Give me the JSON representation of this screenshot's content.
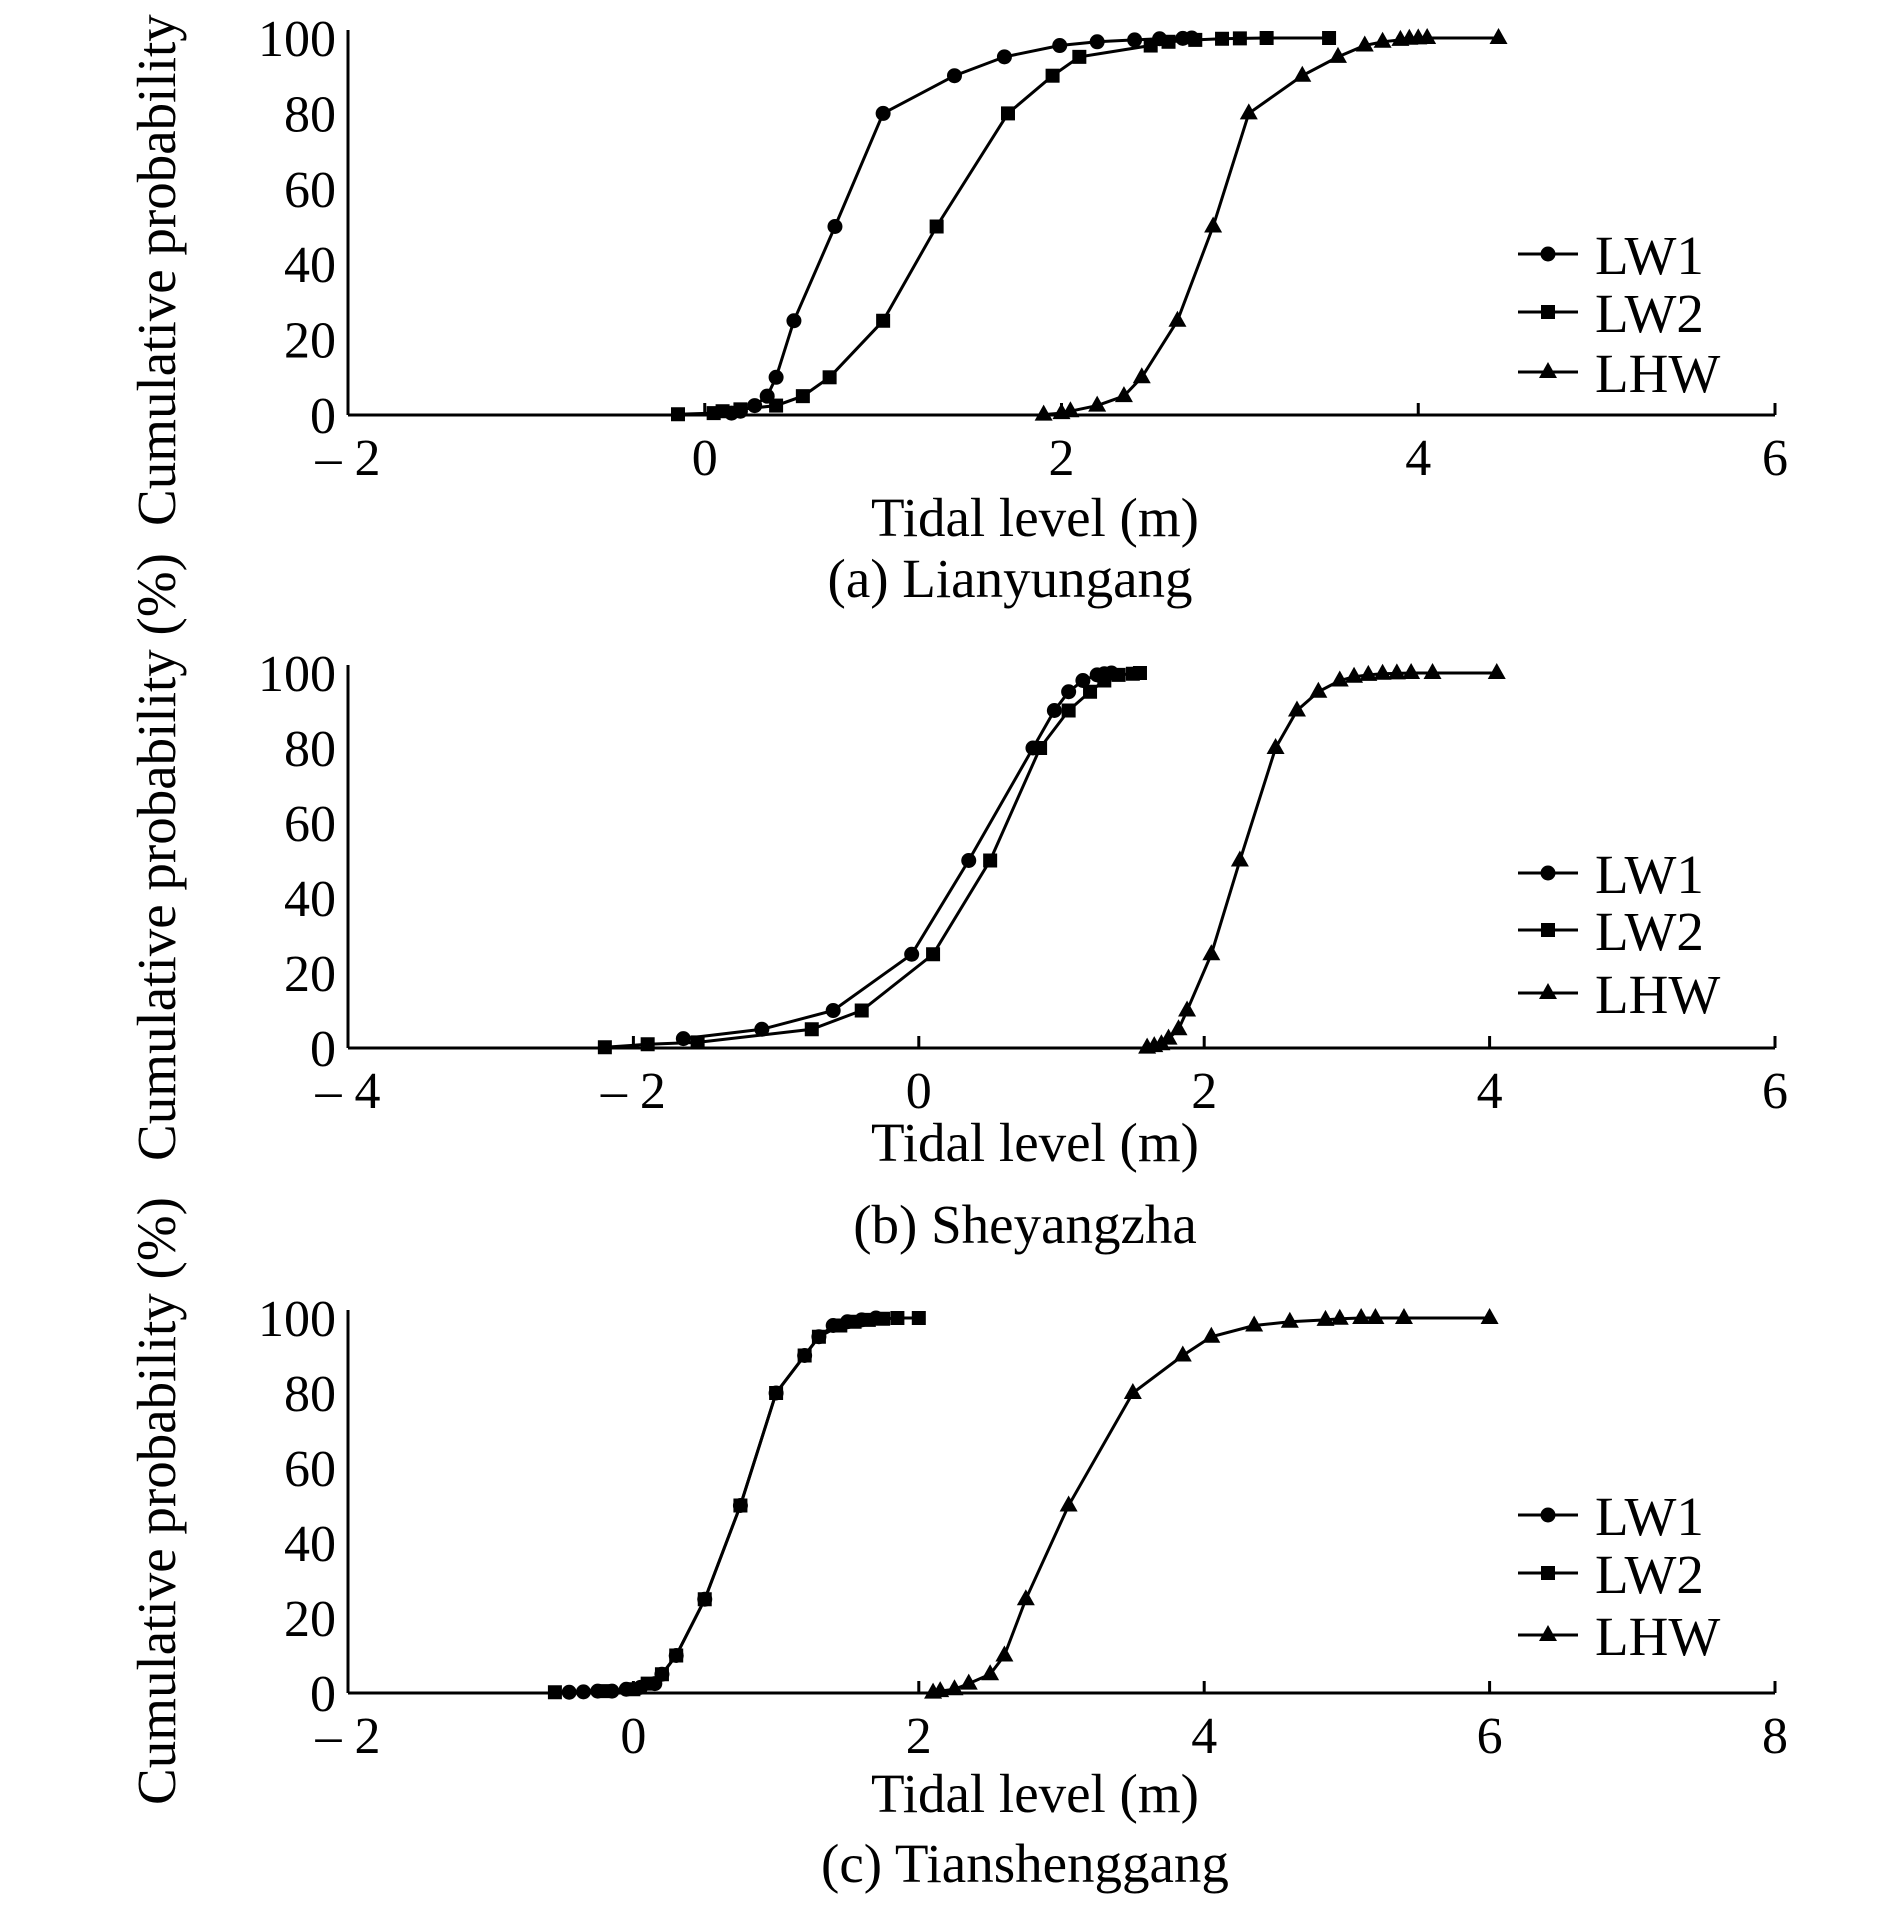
{
  "chart_data": [
    {
      "type": "line",
      "caption": "(a) Lianyungang",
      "xlabel": "Tidal level (m)",
      "ylabel": "Cumulative probability (%)",
      "xlim": [
        -2,
        6
      ],
      "ylim": [
        0,
        100
      ],
      "xticks": [
        -2,
        0,
        2,
        4,
        6
      ],
      "xtick_labels": [
        "– 2",
        "0",
        "2",
        "4",
        "6"
      ],
      "yticks": [
        0,
        20,
        40,
        60,
        80,
        100
      ],
      "ytick_labels": [
        "0",
        "20",
        "40",
        "60",
        "80",
        "100"
      ],
      "grid": false,
      "legend_position": "right",
      "series": [
        {
          "name": "LW1",
          "marker": "circle",
          "x": [
            0.15,
            0.2,
            0.28,
            0.35,
            0.4,
            0.5,
            0.73,
            1.0,
            1.4,
            1.68,
            1.99,
            2.2,
            2.41,
            2.55,
            2.68,
            2.73
          ],
          "y": [
            0.5,
            1,
            2.5,
            5,
            10,
            25,
            50,
            80,
            90,
            95,
            98,
            99,
            99.5,
            99.8,
            99.9,
            100
          ]
        },
        {
          "name": "LW2",
          "marker": "square",
          "x": [
            -0.15,
            0.05,
            0.1,
            0.2,
            0.4,
            0.55,
            0.7,
            1.0,
            1.3,
            1.7,
            1.95,
            2.1,
            2.5,
            2.6,
            2.75,
            2.9,
            3.0,
            3.15,
            3.5
          ],
          "y": [
            0.2,
            0.5,
            1,
            1.5,
            2.5,
            5,
            10,
            25,
            50,
            80,
            90,
            95,
            98,
            99,
            99.5,
            99.8,
            99.9,
            100,
            100
          ]
        },
        {
          "name": "LHW",
          "marker": "triangle",
          "x": [
            1.9,
            2.0,
            2.05,
            2.2,
            2.35,
            2.45,
            2.65,
            2.85,
            3.05,
            3.35,
            3.55,
            3.7,
            3.8,
            3.9,
            3.95,
            4.0,
            4.05,
            4.45
          ],
          "y": [
            0.1,
            0.5,
            1,
            2.5,
            5,
            10,
            25,
            50,
            80,
            90,
            95,
            98,
            99,
            99.5,
            99.8,
            99.9,
            100,
            100
          ]
        }
      ]
    },
    {
      "type": "line",
      "caption": "(b) Sheyangzha",
      "xlabel": "Tidal level (m)",
      "ylabel": "Cumulative probability (%)",
      "xlim": [
        -4,
        6
      ],
      "ylim": [
        0,
        100
      ],
      "xticks": [
        -4,
        -2,
        0,
        2,
        4,
        6
      ],
      "xtick_labels": [
        "– 4",
        "– 2",
        "0",
        "2",
        "4",
        "6"
      ],
      "yticks": [
        0,
        20,
        40,
        60,
        80,
        100
      ],
      "ytick_labels": [
        "0",
        "20",
        "40",
        "60",
        "80",
        "100"
      ],
      "grid": false,
      "legend_position": "right",
      "series": [
        {
          "name": "LW1",
          "marker": "circle",
          "x": [
            -1.65,
            -1.1,
            -0.6,
            -0.05,
            0.35,
            0.8,
            0.95,
            1.05,
            1.15,
            1.25,
            1.3,
            1.35
          ],
          "y": [
            2.5,
            5,
            10,
            25,
            50,
            80,
            90,
            95,
            98,
            99.5,
            99.8,
            100
          ]
        },
        {
          "name": "LW2",
          "marker": "square",
          "x": [
            -2.2,
            -1.9,
            -1.55,
            -0.75,
            -0.4,
            0.1,
            0.5,
            0.85,
            1.05,
            1.2,
            1.3,
            1.4,
            1.5,
            1.55
          ],
          "y": [
            0.2,
            1,
            1.5,
            5,
            10,
            25,
            50,
            80,
            90,
            95,
            98,
            99.5,
            99.8,
            100
          ]
        },
        {
          "name": "LHW",
          "marker": "triangle",
          "x": [
            1.6,
            1.65,
            1.7,
            1.75,
            1.82,
            1.88,
            2.05,
            2.25,
            2.5,
            2.65,
            2.8,
            2.95,
            3.05,
            3.15,
            3.25,
            3.35,
            3.45,
            3.6,
            4.05
          ],
          "y": [
            0.1,
            0.5,
            1,
            2.5,
            5,
            10,
            25,
            50,
            80,
            90,
            95,
            98,
            99,
            99.5,
            99.8,
            99.9,
            100,
            100,
            100
          ]
        }
      ]
    },
    {
      "type": "line",
      "caption": "(c) Tianshenggang",
      "xlabel": "Tidal level (m)",
      "ylabel": "Cumulative probability (%)",
      "xlim": [
        -2,
        8
      ],
      "ylim": [
        0,
        100
      ],
      "xticks": [
        -2,
        0,
        2,
        4,
        6,
        8
      ],
      "xtick_labels": [
        "– 2",
        "0",
        "2",
        "4",
        "6",
        "8"
      ],
      "yticks": [
        0,
        20,
        40,
        60,
        80,
        100
      ],
      "ytick_labels": [
        "0",
        "20",
        "40",
        "60",
        "80",
        "100"
      ],
      "grid": false,
      "legend_position": "right",
      "series": [
        {
          "name": "LW1",
          "marker": "circle",
          "x": [
            -0.45,
            -0.35,
            -0.25,
            -0.15,
            -0.05,
            0.05,
            0.15,
            0.2,
            0.3,
            0.5,
            0.75,
            1.0,
            1.2,
            1.3,
            1.4,
            1.5,
            1.6,
            1.7
          ],
          "y": [
            0.2,
            0.3,
            0.5,
            0.5,
            1,
            1.5,
            2.5,
            5,
            10,
            25,
            50,
            80,
            90,
            95,
            98,
            99,
            99.5,
            100
          ]
        },
        {
          "name": "LW2",
          "marker": "square",
          "x": [
            -0.55,
            -0.2,
            0.0,
            0.1,
            0.2,
            0.3,
            0.5,
            0.75,
            1.0,
            1.2,
            1.3,
            1.45,
            1.55,
            1.65,
            1.75,
            1.85,
            2.0
          ],
          "y": [
            0.2,
            0.5,
            1,
            2.5,
            5,
            10,
            25,
            50,
            80,
            90,
            95,
            98,
            99,
            99.5,
            99.8,
            100,
            100
          ]
        },
        {
          "name": "LHW",
          "marker": "triangle",
          "x": [
            2.1,
            2.15,
            2.25,
            2.35,
            2.5,
            2.6,
            2.75,
            3.05,
            3.5,
            3.85,
            4.05,
            4.35,
            4.6,
            4.85,
            4.95,
            5.1,
            5.2,
            5.4,
            6.0
          ],
          "y": [
            0.1,
            0.5,
            1,
            2.5,
            5,
            10,
            25,
            50,
            80,
            90,
            95,
            98,
            99,
            99.5,
            99.8,
            100,
            100,
            100,
            100
          ]
        }
      ]
    }
  ]
}
